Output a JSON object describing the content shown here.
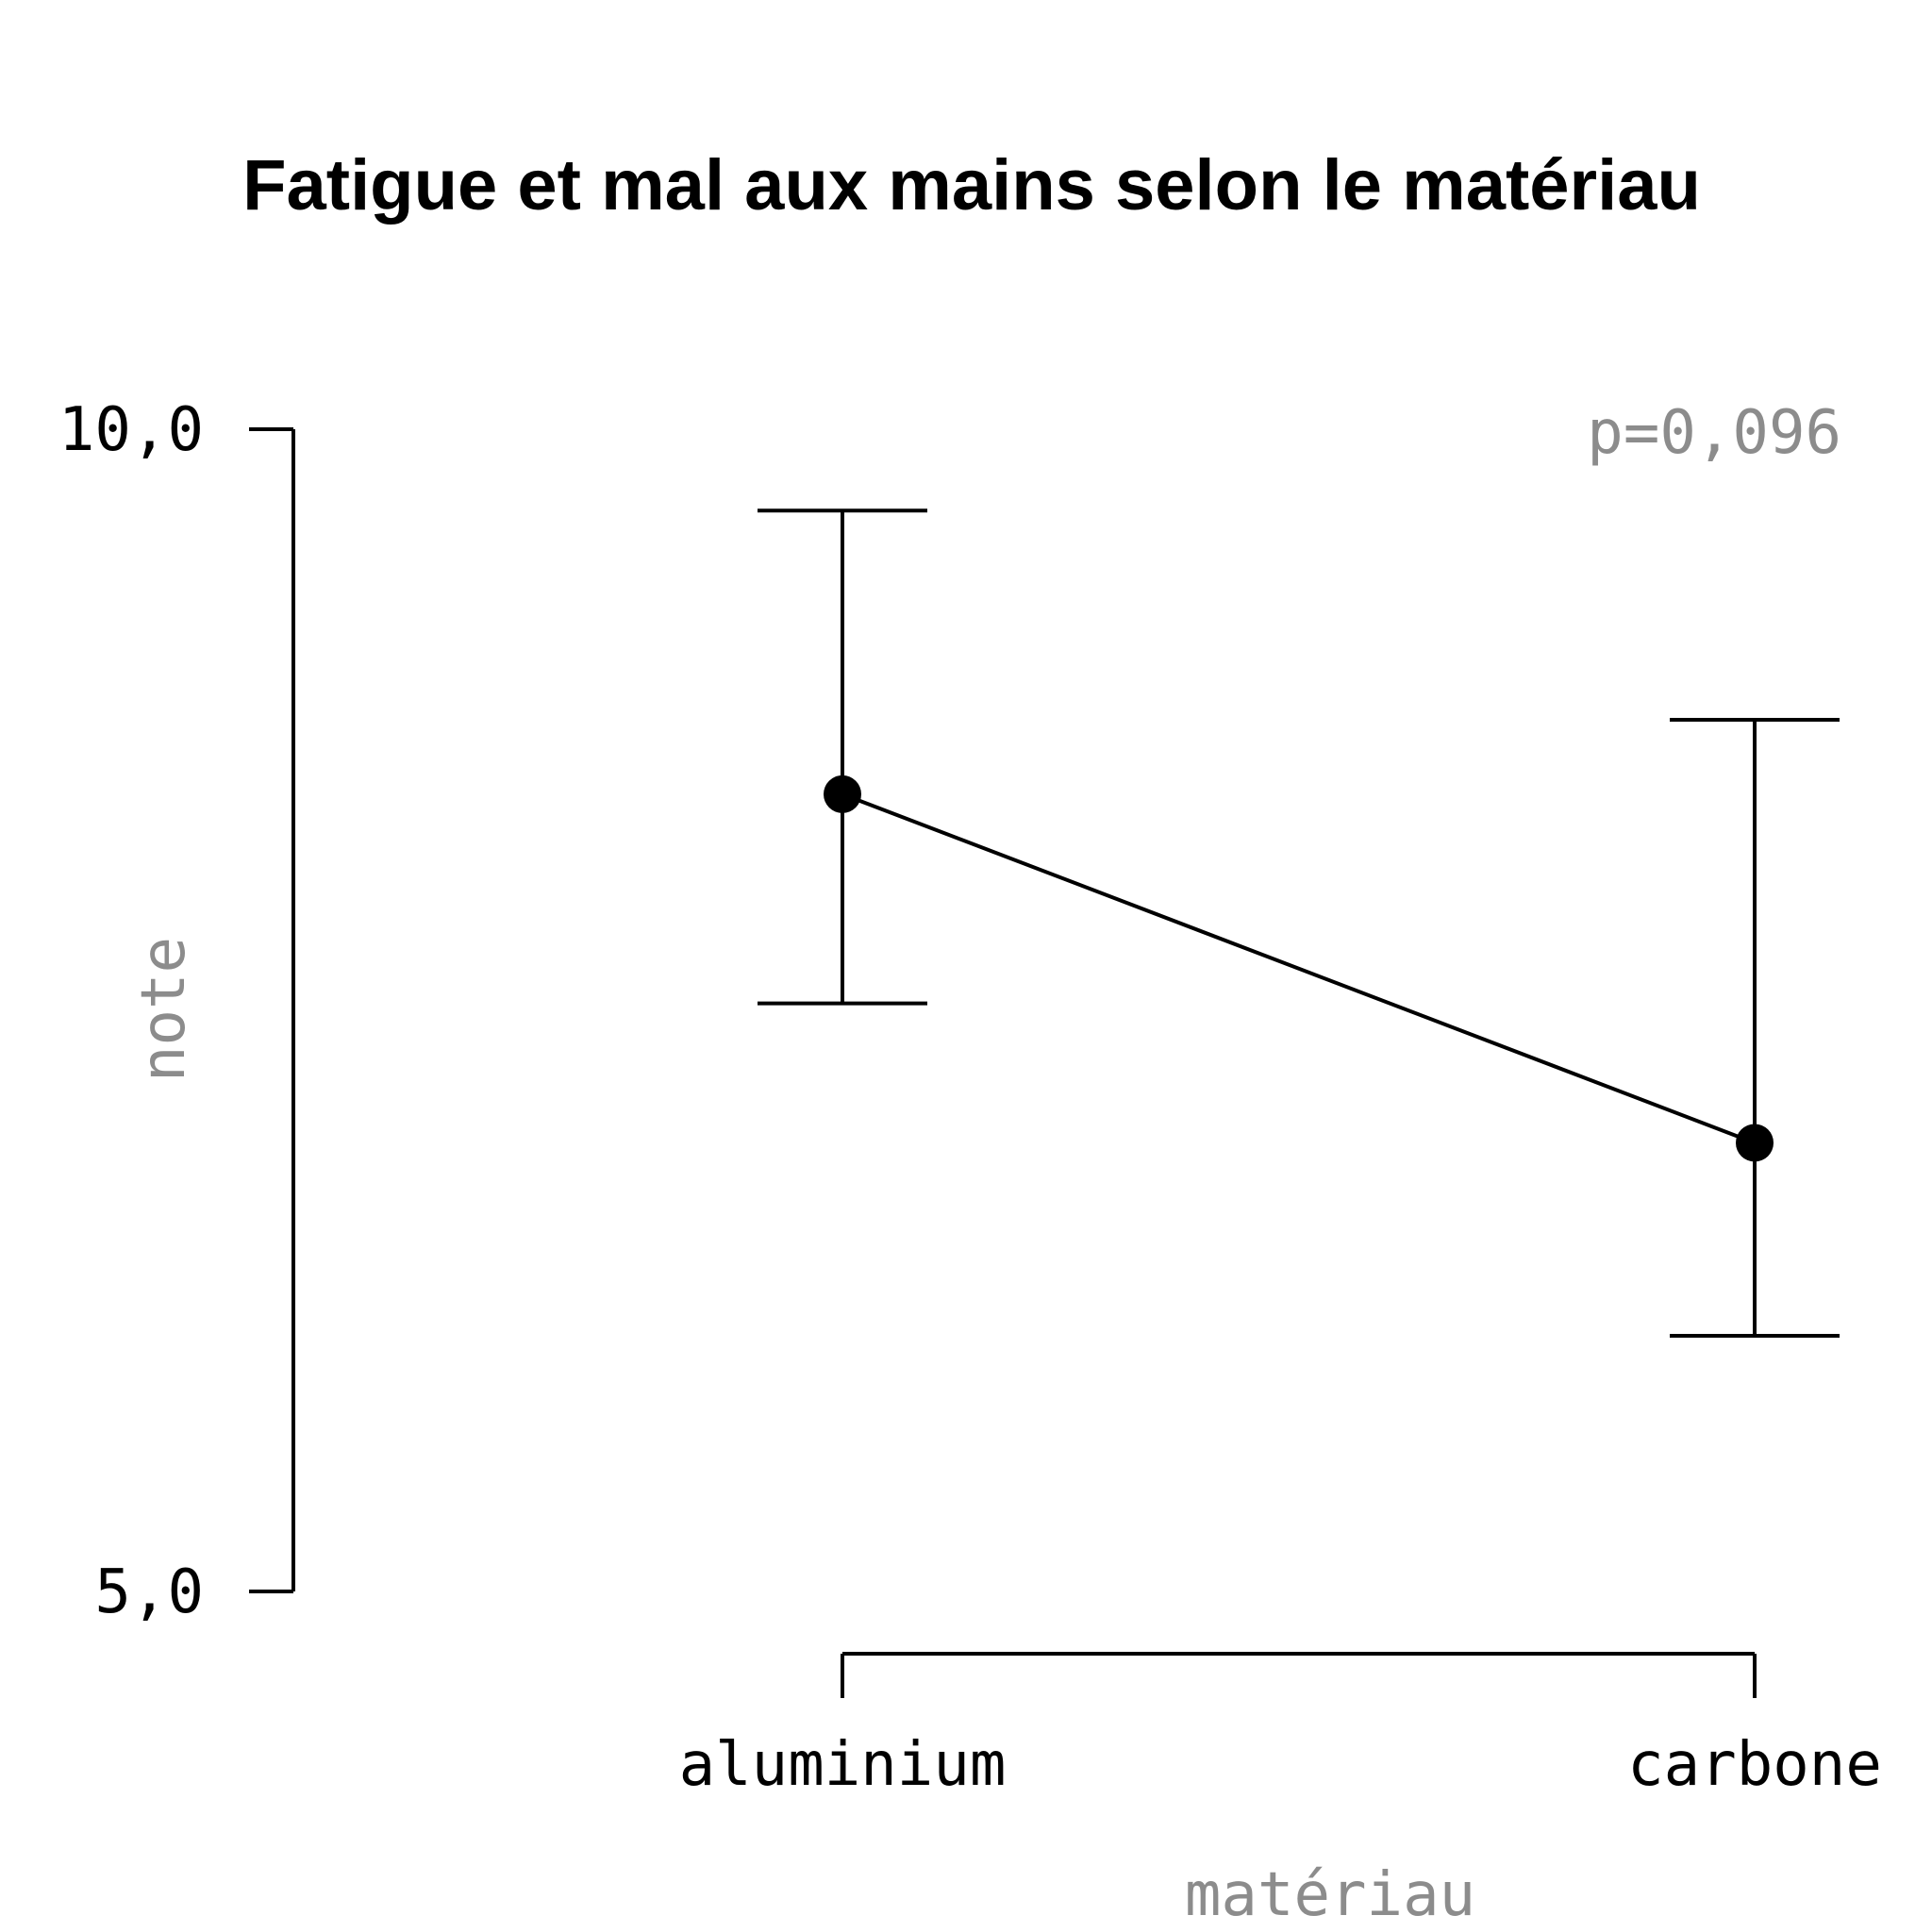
{
  "chart_data": {
    "type": "line",
    "title": "Fatigue et mal aux mains selon le matériau",
    "xlabel": "matériau",
    "ylabel": "note",
    "categories": [
      "aluminium",
      "carbone"
    ],
    "series": [
      {
        "values": [
          8.43,
          6.93
        ],
        "error_low": [
          7.53,
          6.1
        ],
        "error_high": [
          9.65,
          8.75
        ]
      }
    ],
    "y_ticks": [
      {
        "value": 5.0,
        "label": "5,0"
      },
      {
        "value": 10.0,
        "label": "10,0"
      }
    ],
    "ylim": [
      5.0,
      10.0
    ],
    "annotation": "p=0,096",
    "grid": false,
    "legend": "none",
    "colors": {
      "line": "#000000",
      "point": "#000000",
      "text": "#000000",
      "muted_text": "#8c8c8c"
    }
  }
}
